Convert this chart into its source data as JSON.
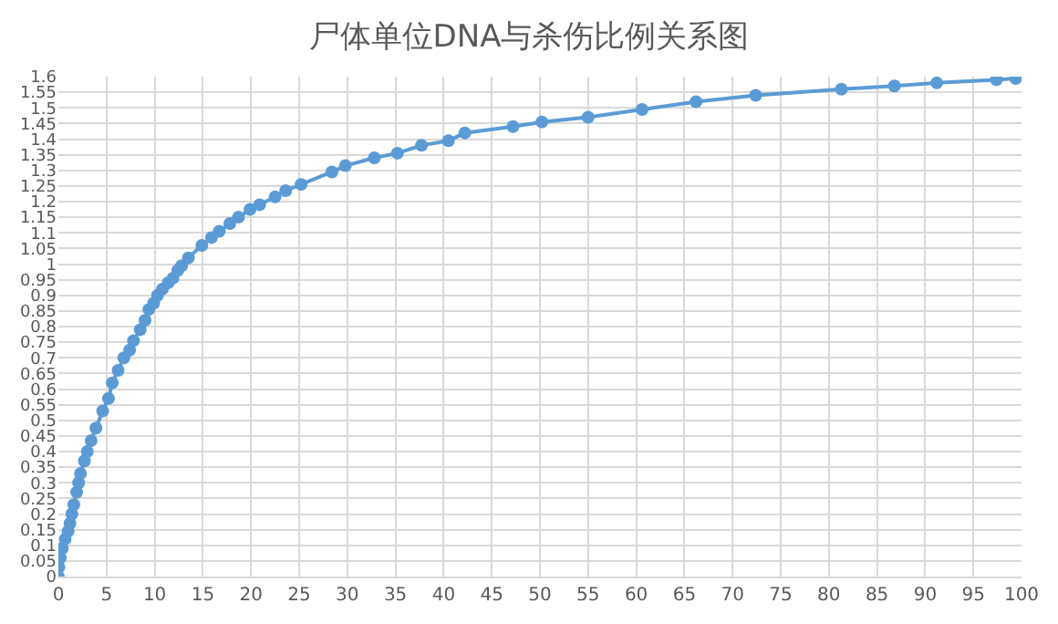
{
  "chart_data": {
    "type": "line",
    "title": "尸体单位DNA与杀伤比例关系图",
    "x": [
      0,
      0.05,
      0.2,
      0.4,
      0.7,
      1,
      1.2,
      1.4,
      1.6,
      1.9,
      2.1,
      2.3,
      2.7,
      3.0,
      3.4,
      3.9,
      4.6,
      5.2,
      5.6,
      6.2,
      6.8,
      7.4,
      7.8,
      8.5,
      9,
      9.4,
      9.9,
      10.3,
      10.8,
      11.4,
      11.9,
      12.4,
      12.8,
      13.5,
      14.9,
      15.9,
      16.7,
      17.8,
      18.7,
      19.9,
      20.9,
      22.5,
      23.6,
      25.2,
      28.4,
      29.8,
      32.8,
      35.2,
      37.7,
      40.5,
      42.2,
      47.2,
      50.2,
      55,
      60.6,
      66.2,
      72.4,
      81.3,
      86.8,
      91.2,
      97.4,
      99.4
    ],
    "series": [
      {
        "color": "#5b9bd5",
        "values": [
          0,
          0.03,
          0.06,
          0.09,
          0.12,
          0.145,
          0.17,
          0.2,
          0.23,
          0.27,
          0.3,
          0.33,
          0.37,
          0.4,
          0.435,
          0.475,
          0.53,
          0.57,
          0.62,
          0.66,
          0.7,
          0.725,
          0.755,
          0.79,
          0.82,
          0.855,
          0.875,
          0.9,
          0.92,
          0.94,
          0.955,
          0.98,
          0.995,
          1.02,
          1.06,
          1.085,
          1.105,
          1.13,
          1.15,
          1.175,
          1.19,
          1.215,
          1.235,
          1.255,
          1.295,
          1.315,
          1.34,
          1.355,
          1.38,
          1.395,
          1.42,
          1.44,
          1.455,
          1.47,
          1.495,
          1.52,
          1.54,
          1.56,
          1.57,
          1.58,
          1.59,
          1.594
        ]
      }
    ],
    "xlim": [
      0,
      100
    ],
    "xticks": [
      0,
      5,
      10,
      15,
      20,
      25,
      30,
      35,
      40,
      45,
      50,
      55,
      60,
      65,
      70,
      75,
      80,
      85,
      90,
      95,
      100
    ],
    "ylim": [
      0,
      1.6
    ],
    "yticks": [
      0,
      0.05,
      0.1,
      0.15,
      0.2,
      0.25,
      0.3,
      0.35,
      0.4,
      0.45,
      0.5,
      0.55,
      0.6,
      0.65,
      0.7,
      0.75,
      0.8,
      0.85,
      0.9,
      0.95,
      1,
      1.05,
      1.1,
      1.15,
      1.2,
      1.25,
      1.3,
      1.35,
      1.4,
      1.45,
      1.5,
      1.55,
      1.6
    ],
    "grid": true,
    "marker": "circle",
    "line_style": "solid",
    "legend": false
  }
}
